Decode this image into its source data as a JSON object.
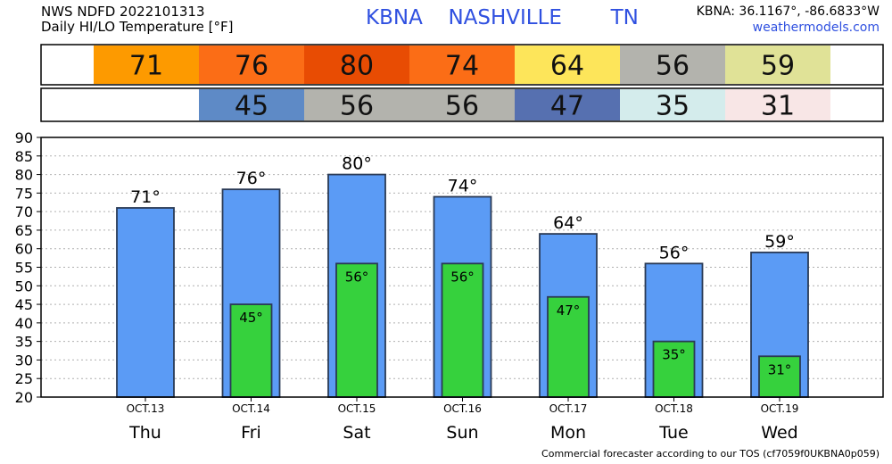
{
  "header": {
    "line1": "NWS NDFD 2022101313",
    "line2": "Daily HI/LO Temperature [°F]",
    "station": "KBNA",
    "city": "NASHVILLE",
    "state": "TN",
    "coords": "KBNA: 36.1167°, -86.6833°W",
    "site": "weathermodels.com"
  },
  "footer": "Commercial forecaster according to our TOS (cf7059f0UKBNA0p059)",
  "hi_boxes": [
    {
      "value": "71",
      "color": "#fd9a00"
    },
    {
      "value": "76",
      "color": "#fb6d16"
    },
    {
      "value": "80",
      "color": "#e84c03"
    },
    {
      "value": "74",
      "color": "#fb6d16"
    },
    {
      "value": "64",
      "color": "#fde55a"
    },
    {
      "value": "56",
      "color": "#b3b3ad"
    },
    {
      "value": "59",
      "color": "#e0e297"
    }
  ],
  "lo_boxes": [
    {
      "value": "",
      "color": "#ffffff"
    },
    {
      "value": "45",
      "color": "#5e8ac6"
    },
    {
      "value": "56",
      "color": "#b3b3ad"
    },
    {
      "value": "56",
      "color": "#b3b3ad"
    },
    {
      "value": "47",
      "color": "#5670b0"
    },
    {
      "value": "35",
      "color": "#d4ecec"
    },
    {
      "value": "31",
      "color": "#f8e6e6"
    }
  ],
  "colors": {
    "hi_bar": "#5b9bf5",
    "lo_bar": "#36d13d",
    "bar_stroke": "#2a3a55",
    "grid": "#b0b0b0"
  },
  "chart_data": {
    "type": "bar",
    "categories": [
      "Thu",
      "Fri",
      "Sat",
      "Sun",
      "Mon",
      "Tue",
      "Wed"
    ],
    "dates": [
      "OCT.13",
      "OCT.14",
      "OCT.15",
      "OCT.16",
      "OCT.17",
      "OCT.18",
      "OCT.19"
    ],
    "series": [
      {
        "values": [
          71,
          76,
          80,
          74,
          64,
          56,
          59
        ]
      },
      {
        "values": [
          null,
          45,
          56,
          56,
          47,
          35,
          31
        ]
      }
    ],
    "hi_labels": [
      "71°",
      "76°",
      "80°",
      "74°",
      "64°",
      "56°",
      "59°"
    ],
    "lo_labels": [
      "",
      "45°",
      "56°",
      "56°",
      "47°",
      "35°",
      "31°"
    ],
    "ylim": [
      20,
      90
    ],
    "yticks": [
      "20",
      "25",
      "30",
      "35",
      "40",
      "45",
      "50",
      "55",
      "60",
      "65",
      "70",
      "75",
      "80",
      "85",
      "90"
    ],
    "grid": true
  }
}
